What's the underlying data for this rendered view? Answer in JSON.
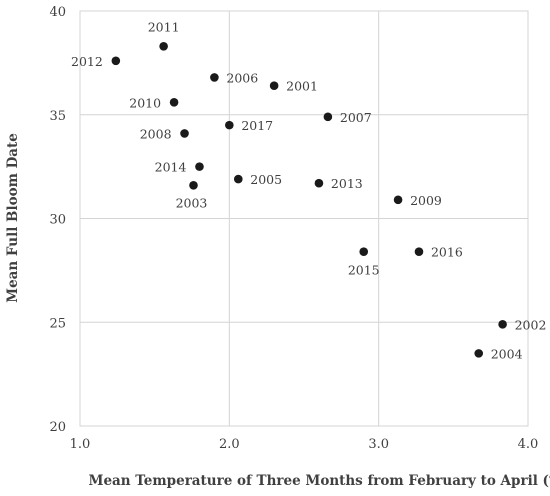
{
  "chart_data": {
    "type": "scatter",
    "title": "",
    "xlabel": "Mean Temperature of Three Months from February to April (℃)",
    "ylabel": "Mean Full Bloom Date",
    "xlim": [
      1.0,
      4.0
    ],
    "ylim": [
      20,
      40
    ],
    "xticks": [
      "1.0",
      "2.0",
      "3.0",
      "4.0"
    ],
    "yticks": [
      "20",
      "25",
      "30",
      "35",
      "40"
    ],
    "grid": true,
    "legend": "none",
    "points": [
      {
        "label": "2011",
        "x": 1.56,
        "y": 38.3
      },
      {
        "label": "2012",
        "x": 1.24,
        "y": 37.6
      },
      {
        "label": "2006",
        "x": 1.9,
        "y": 36.8
      },
      {
        "label": "2001",
        "x": 2.3,
        "y": 36.4
      },
      {
        "label": "2010",
        "x": 1.63,
        "y": 35.6
      },
      {
        "label": "2007",
        "x": 2.66,
        "y": 34.9
      },
      {
        "label": "2017",
        "x": 2.0,
        "y": 34.5
      },
      {
        "label": "2008",
        "x": 1.7,
        "y": 34.1
      },
      {
        "label": "2014",
        "x": 1.8,
        "y": 32.5
      },
      {
        "label": "2005",
        "x": 2.06,
        "y": 31.9
      },
      {
        "label": "2013",
        "x": 2.6,
        "y": 31.7
      },
      {
        "label": "2003",
        "x": 1.76,
        "y": 31.6
      },
      {
        "label": "2009",
        "x": 3.13,
        "y": 30.9
      },
      {
        "label": "2015",
        "x": 2.9,
        "y": 28.4
      },
      {
        "label": "2016",
        "x": 3.27,
        "y": 28.4
      },
      {
        "label": "2002",
        "x": 3.83,
        "y": 24.9
      },
      {
        "label": "2004",
        "x": 3.67,
        "y": 23.5
      }
    ]
  }
}
